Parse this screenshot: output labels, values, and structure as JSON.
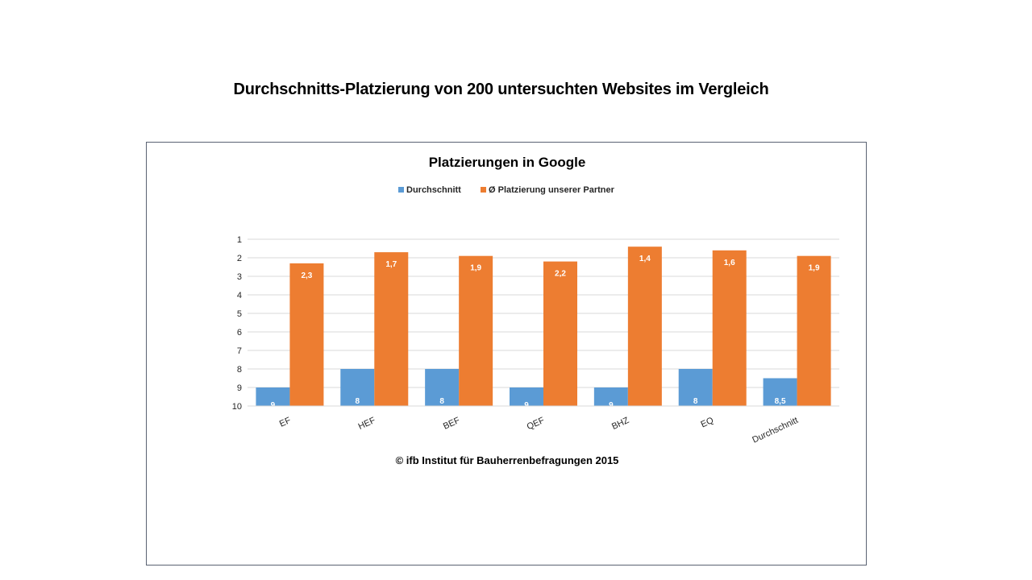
{
  "page": {
    "title": "Durchschnitts-Platzierung von 200 untersuchten Websites im Vergleich",
    "copyright": "© ifb Institut für Bauherrenbefragungen 2015"
  },
  "chart_data": {
    "type": "bar",
    "title": "Platzierungen in Google",
    "categories": [
      "EF",
      "HEF",
      "BEF",
      "QEF",
      "BHZ",
      "EQ",
      "Durchschnitt"
    ],
    "series": [
      {
        "name": "Durchschnitt",
        "color": "#5B9BD5",
        "values": [
          9,
          8,
          8,
          9,
          9,
          8,
          8.5
        ],
        "labels": [
          "9",
          "8",
          "8",
          "9",
          "9",
          "8",
          "8,5"
        ]
      },
      {
        "name": "Ø Platzierung unserer Partner",
        "color": "#ED7D31",
        "values": [
          2.3,
          1.7,
          1.9,
          2.2,
          1.4,
          1.6,
          1.9
        ],
        "labels": [
          "2,3",
          "1,7",
          "1,9",
          "2,2",
          "1,4",
          "1,6",
          "1,9"
        ]
      }
    ],
    "yticks": [
      "1",
      "2",
      "3",
      "4",
      "5",
      "6",
      "7",
      "8",
      "9",
      "10"
    ],
    "ylim": [
      1,
      10
    ],
    "y_inverted": true,
    "bars_grow_from": 10,
    "grid": true,
    "legend_position": "top"
  }
}
